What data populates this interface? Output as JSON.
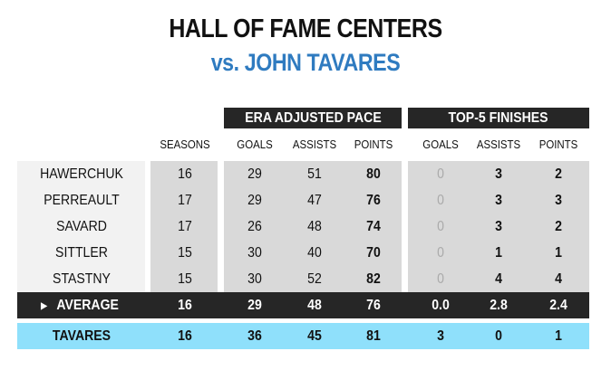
{
  "title": "HALL OF FAME CENTERS",
  "subtitle": "vs. JOHN TAVARES",
  "colors": {
    "accent": "#2f7bc0",
    "dark": "#262626",
    "tavares_row": "#8fe0fb",
    "cells": "#d9d9d9",
    "names": "#f2f2f2"
  },
  "chart_data": {
    "type": "table",
    "groups": [
      "ERA ADJUSTED PACE",
      "TOP-5 FINISHES"
    ],
    "columns": [
      "SEASONS",
      "GOALS",
      "ASSISTS",
      "POINTS",
      "GOALS",
      "ASSISTS",
      "POINTS"
    ],
    "rows": [
      {
        "name": "HAWERCHUK",
        "values": [
          "16",
          "29",
          "51",
          "80",
          "0",
          "3",
          "2"
        ]
      },
      {
        "name": "PERREAULT",
        "values": [
          "17",
          "29",
          "47",
          "76",
          "0",
          "3",
          "3"
        ]
      },
      {
        "name": "SAVARD",
        "values": [
          "17",
          "26",
          "48",
          "74",
          "0",
          "3",
          "2"
        ]
      },
      {
        "name": "SITTLER",
        "values": [
          "15",
          "30",
          "40",
          "70",
          "0",
          "1",
          "1"
        ]
      },
      {
        "name": "STASTNY",
        "values": [
          "15",
          "30",
          "52",
          "82",
          "0",
          "4",
          "4"
        ]
      }
    ],
    "average": {
      "name": "AVERAGE",
      "icon": "triangle-right-icon",
      "values": [
        "16",
        "29",
        "48",
        "76",
        "0.0",
        "2.8",
        "2.4"
      ]
    },
    "tavares": {
      "name": "TAVARES",
      "values": [
        "16",
        "36",
        "45",
        "81",
        "3",
        "0",
        "1"
      ]
    }
  }
}
